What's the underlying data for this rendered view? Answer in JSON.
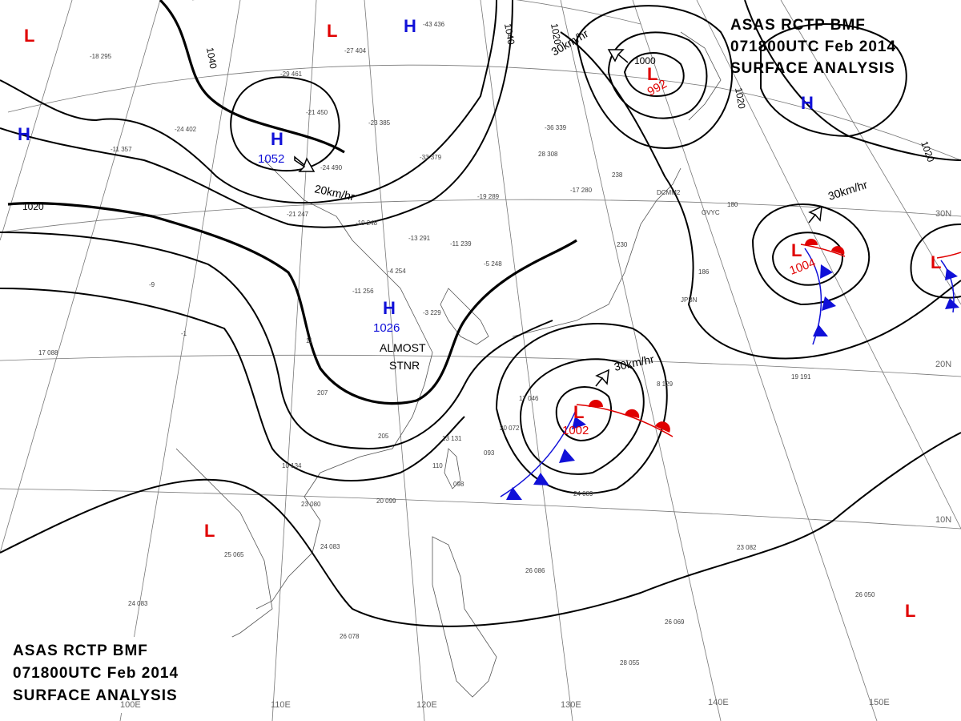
{
  "header": {
    "line1": "ASAS RCTP BMF",
    "line2": "071800UTC Feb 2014",
    "line3": "SURFACE ANALYSIS"
  },
  "longitude_labels": [
    "100E",
    "110E",
    "120E",
    "130E",
    "140E",
    "150E"
  ],
  "latitude_labels": [
    "30N",
    "20N",
    "10N"
  ],
  "isobar_labels": [
    "1040",
    "1040",
    "1020",
    "1020",
    "1000",
    "1020",
    "1020"
  ],
  "pressure_systems": [
    {
      "type": "H",
      "value": "1052"
    },
    {
      "type": "H",
      "value": "1026"
    },
    {
      "type": "H",
      "value": ""
    },
    {
      "type": "H",
      "value": ""
    },
    {
      "type": "H",
      "value": ""
    },
    {
      "type": "L",
      "value": "992"
    },
    {
      "type": "L",
      "value": "1004"
    },
    {
      "type": "L",
      "value": "1002"
    },
    {
      "type": "L",
      "value": ""
    },
    {
      "type": "L",
      "value": ""
    },
    {
      "type": "L",
      "value": ""
    },
    {
      "type": "L",
      "value": ""
    },
    {
      "type": "L",
      "value": ""
    }
  ],
  "motion_labels": [
    "20km/hr",
    "30km/hr",
    "30km/hr",
    "30km/hr"
  ],
  "annotations": [
    "ALMOST",
    "STNR"
  ],
  "station_data": [
    "-18 295",
    "-27 404",
    "-43 436",
    "-29 461",
    "-21 450",
    "-23 385",
    "-24 402",
    "-24 490",
    "-11 357",
    "-36 339",
    "28 308",
    "-33 379",
    "-19 289",
    "-11 239",
    "-17 280",
    "238",
    "180",
    "-21 247",
    "-19 248",
    "-13 291",
    "-4 254",
    "-5 248",
    "230",
    "186",
    "-11 256",
    "-3 229",
    "-9",
    "-1",
    "11",
    "17 088",
    "207",
    "205",
    "13 131",
    "20 072",
    "17 046",
    "093",
    "110",
    "098",
    "10 134",
    "23 080",
    "20 099",
    "24 089",
    "24 083",
    "25 065",
    "24 083",
    "26 078",
    "26 086",
    "26 069",
    "28 055",
    "23 082",
    "26 050",
    "19 191",
    "8 129",
    "JPBN",
    "DCMM2",
    "OVYC"
  ]
}
